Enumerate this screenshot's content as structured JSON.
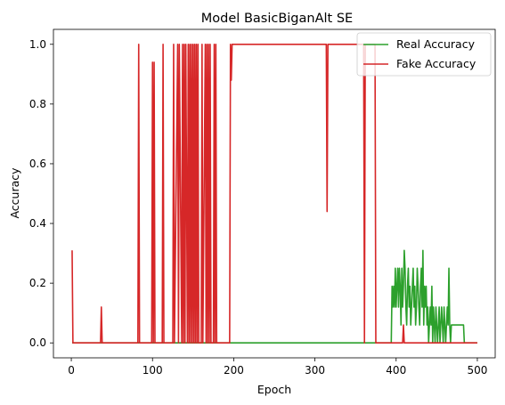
{
  "chart_data": {
    "type": "line",
    "title": "Model BasicBiganAlt SE",
    "xlabel": "Epoch",
    "ylabel": "Accuracy",
    "xlim": [
      -22,
      522
    ],
    "ylim": [
      -0.05,
      1.05
    ],
    "xticks": [
      0,
      100,
      200,
      300,
      400,
      500
    ],
    "yticks": [
      0.0,
      0.2,
      0.4,
      0.6,
      0.8,
      1.0
    ],
    "ytick_labels": [
      "0.0",
      "0.2",
      "0.4",
      "0.6",
      "0.8",
      "1.0"
    ],
    "legend": {
      "placement": "top-right"
    },
    "grid": false,
    "series": [
      {
        "name": "Real Accuracy",
        "color": "#2ca02c",
        "x": [
          1,
          394,
          395,
          396,
          397,
          398,
          399,
          400,
          401,
          402,
          403,
          404,
          405,
          406,
          407,
          408,
          409,
          410,
          411,
          412,
          413,
          414,
          415,
          416,
          417,
          418,
          419,
          420,
          421,
          422,
          423,
          424,
          425,
          426,
          427,
          428,
          429,
          430,
          431,
          432,
          433,
          434,
          435,
          436,
          437,
          438,
          439,
          440,
          441,
          442,
          443,
          444,
          445,
          446,
          447,
          448,
          449,
          450,
          451,
          452,
          453,
          454,
          455,
          456,
          457,
          458,
          459,
          460,
          461,
          462,
          463,
          464,
          465,
          466,
          467,
          468,
          469,
          470,
          471,
          472,
          473,
          474,
          475,
          476,
          477,
          478,
          479,
          480,
          481,
          482,
          483,
          484,
          485,
          486,
          487,
          488,
          489,
          490,
          491,
          492,
          493,
          494,
          495,
          496,
          497,
          498,
          499,
          500
        ],
        "y": [
          0,
          0,
          0.19,
          0.12,
          0.19,
          0.12,
          0.25,
          0.12,
          0.19,
          0.25,
          0.12,
          0.25,
          0.19,
          0.06,
          0.25,
          0.12,
          0.19,
          0.31,
          0.25,
          0.12,
          0.06,
          0.19,
          0.25,
          0.12,
          0.19,
          0.06,
          0.12,
          0.19,
          0.25,
          0.12,
          0.19,
          0.06,
          0.12,
          0.25,
          0.19,
          0.12,
          0.06,
          0.19,
          0.25,
          0.12,
          0.31,
          0.06,
          0.19,
          0.12,
          0.19,
          0.06,
          0.12,
          0.0,
          0.06,
          0.12,
          0.06,
          0.19,
          0.0,
          0.12,
          0.06,
          0.0,
          0.12,
          0.06,
          0.0,
          0.06,
          0.12,
          0.0,
          0.06,
          0.12,
          0.06,
          0.0,
          0.12,
          0.06,
          0.0,
          0.06,
          0.12,
          0.06,
          0.25,
          0.06,
          0.0,
          0.06,
          0.06,
          0.06,
          0.06,
          0.06,
          0.06,
          0.06,
          0.06,
          0.06,
          0.06,
          0.06,
          0.06,
          0.06,
          0.06,
          0.06,
          0.06,
          0.0,
          0.0,
          0.0,
          0.0,
          0.0,
          0.0,
          0.0,
          0.0,
          0.0,
          0.0,
          0.0,
          0.0,
          0.0,
          0.0,
          0.0,
          0.0,
          0.0
        ]
      },
      {
        "name": "Fake Accuracy",
        "color": "#d62728",
        "x": [
          1,
          2,
          3,
          36,
          37,
          38,
          82,
          83,
          84,
          99,
          100,
          101,
          102,
          103,
          104,
          112,
          113,
          114,
          125,
          126,
          127,
          131,
          132,
          133,
          136,
          137,
          138,
          139,
          140,
          141,
          143,
          144,
          145,
          146,
          147,
          148,
          149,
          150,
          151,
          152,
          153,
          154,
          155,
          156,
          157,
          160,
          161,
          162,
          165,
          166,
          167,
          168,
          169,
          170,
          171,
          172,
          173,
          175,
          176,
          177,
          178,
          179,
          180,
          195,
          196,
          197,
          198,
          314,
          315,
          316,
          317,
          360,
          361,
          362,
          363,
          374,
          375,
          408,
          409,
          410,
          500
        ],
        "y": [
          0.31,
          0,
          0,
          0,
          0.12,
          0,
          0,
          1,
          0,
          0,
          0.94,
          0,
          0.94,
          0,
          0,
          0,
          1,
          0,
          0,
          1,
          0,
          1,
          0,
          1,
          0,
          1,
          0,
          1,
          0,
          1,
          0,
          1,
          0,
          1,
          0,
          1,
          0,
          1,
          0,
          1,
          0,
          1,
          0,
          1,
          0,
          0,
          1,
          0,
          1,
          0,
          1,
          0,
          1,
          0,
          1,
          0,
          0,
          0,
          1,
          0,
          1,
          0,
          0,
          0,
          1,
          0.88,
          1,
          1,
          0.44,
          1,
          1,
          1,
          0,
          1,
          1,
          1,
          0,
          0,
          0.06,
          0,
          0
        ]
      }
    ]
  }
}
